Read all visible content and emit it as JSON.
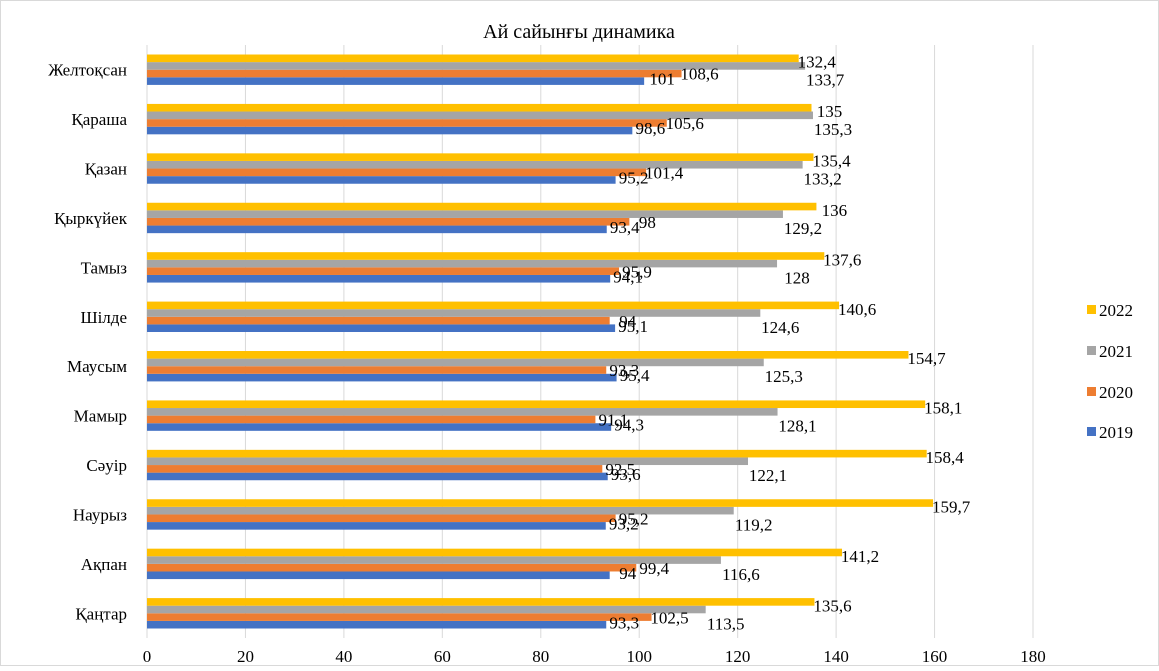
{
  "chart_data": {
    "type": "bar",
    "orientation": "horizontal",
    "title": "Ай сайынғы динамика",
    "xlabel": "",
    "ylabel": "",
    "xlim": [
      0,
      180
    ],
    "x_ticks": [
      "0",
      "20",
      "40",
      "60",
      "80",
      "100",
      "120",
      "140",
      "160",
      "180"
    ],
    "grid": "vertical",
    "legend_position": "right",
    "categories": [
      "Қаңтар",
      "Ақпан",
      "Наурыз",
      "Сәуір",
      "Мамыр",
      "Маусым",
      "Шілде",
      "Тамыз",
      "Қыркүйек",
      "Қазан",
      "Қараша ",
      "Желтоқсан"
    ],
    "series": [
      {
        "name": "2019",
        "color": "#4472C4",
        "values": [
          93.3,
          94,
          93.2,
          93.6,
          94.3,
          95.4,
          95.1,
          94.1,
          93.4,
          95.2,
          98.6,
          101
        ],
        "labels": [
          "93,3",
          "94",
          "93,2",
          "93,6",
          "94,3",
          "95,4",
          "95,1",
          "94,1",
          "93,4",
          "95,2",
          "98,6",
          "101"
        ]
      },
      {
        "name": "2020",
        "color": "#ED7D31",
        "values": [
          102.5,
          99.4,
          95.2,
          92.5,
          91.1,
          93.3,
          94,
          95.9,
          98,
          101.4,
          105.6,
          108.6
        ],
        "labels": [
          "102,5",
          "99,4",
          "95,2",
          "92,5",
          "91,1",
          "93,3",
          "94",
          "95,9",
          "98",
          "101,4",
          "105,6",
          "108,6"
        ]
      },
      {
        "name": "2021",
        "color": "#A5A5A5",
        "values": [
          113.5,
          116.6,
          119.2,
          122.1,
          128.1,
          125.3,
          124.6,
          128,
          129.2,
          133.2,
          135.3,
          133.7
        ],
        "labels": [
          "113,5",
          "116,6",
          "119,2",
          "122,1",
          "128,1",
          "125,3",
          "124,6",
          "128",
          "129,2",
          "133,2",
          "135,3",
          "133,7"
        ]
      },
      {
        "name": "2022",
        "color": "#FFC000",
        "values": [
          135.6,
          141.2,
          159.7,
          158.4,
          158.1,
          154.7,
          140.6,
          137.6,
          136,
          135.4,
          135,
          132.4
        ],
        "labels": [
          "135,6",
          "141,2",
          "159,7",
          "158,4",
          "158,1",
          "154,7",
          "140,6",
          "137,6",
          "136",
          "135,4",
          "135",
          "132,4"
        ]
      }
    ]
  }
}
